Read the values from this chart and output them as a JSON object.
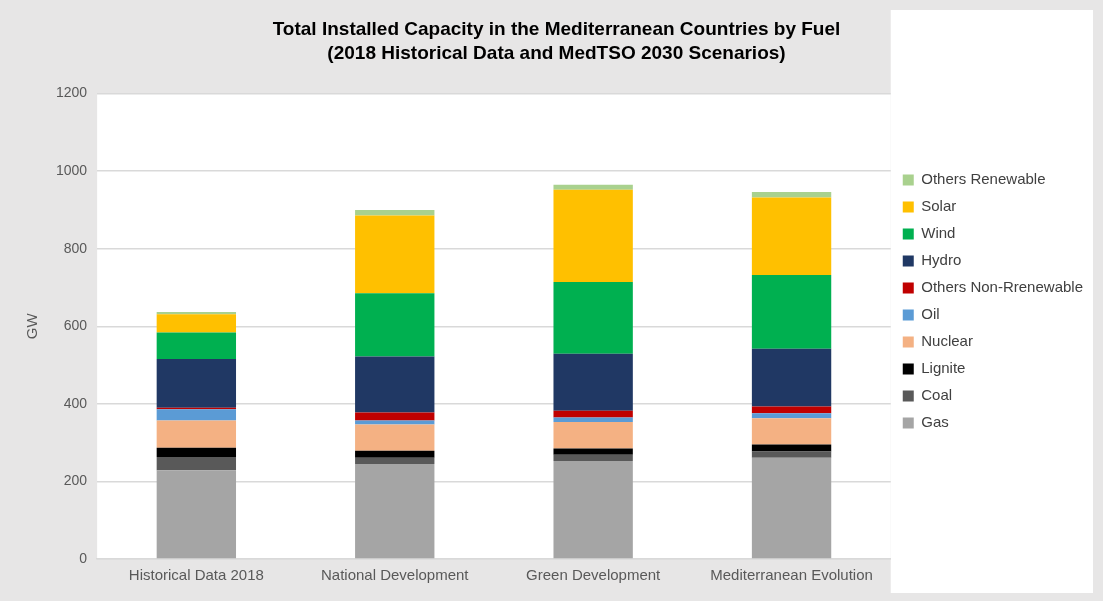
{
  "chart_data": {
    "type": "bar",
    "title": "Total Installed Capacity in the Mediterranean Countries by Fuel",
    "subtitle": "(2018 Historical Data and MedTSO 2030 Scenarios)",
    "ylabel": "GW",
    "categories": [
      "Historical Data 2018",
      "National Development",
      "Green Development",
      "Mediterranean Evolution"
    ],
    "stacked": true,
    "ylim": [
      0,
      1200
    ],
    "yticks": [
      0,
      200,
      400,
      600,
      800,
      1000,
      1200
    ],
    "grid": "y",
    "legend": "right",
    "series": [
      {
        "name": "Gas",
        "color": "#a5a5a5",
        "values": [
          229,
          245,
          253,
          261
        ]
      },
      {
        "name": "Coal",
        "color": "#595959",
        "values": [
          34,
          16,
          16,
          16
        ]
      },
      {
        "name": "Lignite",
        "color": "#000000",
        "values": [
          24,
          18,
          16,
          18
        ]
      },
      {
        "name": "Nuclear",
        "color": "#f4b183",
        "values": [
          70,
          68,
          68,
          68
        ]
      },
      {
        "name": "Oil",
        "color": "#5b9bd5",
        "values": [
          29,
          10,
          12,
          13
        ]
      },
      {
        "name": "Others Non-Rrenewable",
        "color": "#c00000",
        "values": [
          4,
          21,
          17,
          17
        ]
      },
      {
        "name": "Hydro",
        "color": "#203864",
        "values": [
          126,
          144,
          147,
          149
        ]
      },
      {
        "name": "Wind",
        "color": "#00b050",
        "values": [
          68,
          163,
          185,
          190
        ]
      },
      {
        "name": "Solar",
        "color": "#ffc000",
        "values": [
          47,
          201,
          238,
          200
        ]
      },
      {
        "name": "Others Renewable",
        "color": "#a9d18e",
        "values": [
          6,
          14,
          13,
          14
        ]
      }
    ]
  }
}
